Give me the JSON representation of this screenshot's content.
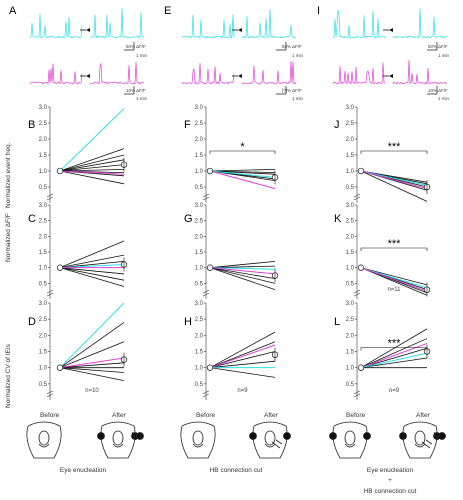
{
  "panel_labels": [
    "A",
    "B",
    "C",
    "D",
    "E",
    "F",
    "G",
    "H",
    "I",
    "J",
    "K",
    "L"
  ],
  "trace_scales": {
    "A_cyan": "50% ΔF/F",
    "A_magenta": "10% ΔF/F",
    "E_cyan": "50% ΔF/F",
    "E_magenta": "[?]% ΔF/F",
    "I_cyan": "50% ΔF/F",
    "I_magenta": "10% ΔF/F",
    "time": "1 min"
  },
  "y_labels": [
    "Normalized event freq.",
    "Normalized ΔF/F",
    "Normalized CV of IEIs"
  ],
  "x_labels": {
    "before": "Before",
    "after": "After"
  },
  "conditions": [
    "Eye enucleation",
    "HB connection cut",
    "Eye enucleation\n+\nHB connection cut"
  ],
  "cond_lines": {
    "c1": "Eye enucleation",
    "c2": "HB connection cut",
    "c3a": "Eye enucleation",
    "c3b": "+",
    "c3c": "HB connection cut"
  },
  "colors": {
    "cyan": "#2fe0e6",
    "magenta": "#e040d6",
    "black": "#111111"
  },
  "chart_data": [
    {
      "panel": "B",
      "type": "line",
      "ylabel": "Normalized event freq.",
      "ylim": [
        0,
        3.0
      ],
      "yticks": [
        0,
        0.5,
        1.0,
        1.5,
        2.0,
        2.5,
        3.0
      ],
      "x": [
        "Before",
        "After"
      ],
      "series": [
        {
          "color": "cyan",
          "values": [
            1.0,
            2.95
          ]
        },
        {
          "color": "black",
          "values": [
            1.0,
            1.7
          ]
        },
        {
          "color": "black",
          "values": [
            1.0,
            1.5
          ]
        },
        {
          "color": "black",
          "values": [
            1.0,
            1.35
          ]
        },
        {
          "color": "black",
          "values": [
            1.0,
            1.2
          ]
        },
        {
          "color": "black",
          "values": [
            1.0,
            1.05
          ]
        },
        {
          "color": "black",
          "values": [
            1.0,
            0.95
          ]
        },
        {
          "color": "magenta",
          "values": [
            1.0,
            0.9
          ]
        },
        {
          "color": "black",
          "values": [
            1.0,
            0.85
          ]
        },
        {
          "color": "black",
          "values": [
            1.0,
            0.6
          ]
        }
      ],
      "mean": [
        1.0,
        1.2
      ],
      "annotation": ""
    },
    {
      "panel": "F",
      "type": "line",
      "ylim": [
        0,
        3.0
      ],
      "x": [
        "Before",
        "After"
      ],
      "series": [
        {
          "color": "black",
          "values": [
            1.0,
            1.05
          ]
        },
        {
          "color": "black",
          "values": [
            1.0,
            0.95
          ]
        },
        {
          "color": "black",
          "values": [
            1.0,
            0.9
          ]
        },
        {
          "color": "cyan",
          "values": [
            1.0,
            0.8
          ]
        },
        {
          "color": "black",
          "values": [
            1.0,
            0.75
          ]
        },
        {
          "color": "black",
          "values": [
            1.0,
            0.7
          ]
        },
        {
          "color": "magenta",
          "values": [
            1.0,
            0.45
          ]
        }
      ],
      "mean": [
        1.0,
        0.8
      ],
      "annotation": "*"
    },
    {
      "panel": "J",
      "type": "line",
      "ylim": [
        0,
        3.0
      ],
      "x": [
        "Before",
        "After"
      ],
      "series": [
        {
          "color": "black",
          "values": [
            1.0,
            0.65
          ]
        },
        {
          "color": "black",
          "values": [
            1.0,
            0.6
          ]
        },
        {
          "color": "cyan",
          "values": [
            1.0,
            0.55
          ]
        },
        {
          "color": "black",
          "values": [
            1.0,
            0.5
          ]
        },
        {
          "color": "magenta",
          "values": [
            1.0,
            0.45
          ]
        },
        {
          "color": "black",
          "values": [
            1.0,
            0.4
          ]
        },
        {
          "color": "black",
          "values": [
            1.0,
            0.05
          ]
        }
      ],
      "mean": [
        1.0,
        0.5
      ],
      "annotation": "***"
    },
    {
      "panel": "C",
      "type": "line",
      "ylabel": "Normalized ΔF/F",
      "ylim": [
        0,
        3.0
      ],
      "x": [
        "Before",
        "After"
      ],
      "series": [
        {
          "color": "black",
          "values": [
            1.0,
            1.85
          ]
        },
        {
          "color": "black",
          "values": [
            1.0,
            1.4
          ]
        },
        {
          "color": "black",
          "values": [
            1.0,
            1.2
          ]
        },
        {
          "color": "cyan",
          "values": [
            1.0,
            1.1
          ]
        },
        {
          "color": "magenta",
          "values": [
            1.0,
            1.0
          ]
        },
        {
          "color": "black",
          "values": [
            1.0,
            0.8
          ]
        },
        {
          "color": "black",
          "values": [
            1.0,
            0.6
          ]
        },
        {
          "color": "black",
          "values": [
            1.0,
            0.4
          ]
        }
      ],
      "mean": [
        1.0,
        1.1
      ],
      "annotation": ""
    },
    {
      "panel": "G",
      "type": "line",
      "ylim": [
        0,
        3.0
      ],
      "x": [
        "Before",
        "After"
      ],
      "series": [
        {
          "color": "black",
          "values": [
            1.0,
            1.2
          ]
        },
        {
          "color": "black",
          "values": [
            1.0,
            1.05
          ]
        },
        {
          "color": "cyan",
          "values": [
            1.0,
            0.95
          ]
        },
        {
          "color": "magenta",
          "values": [
            1.0,
            0.8
          ]
        },
        {
          "color": "black",
          "values": [
            1.0,
            0.65
          ]
        },
        {
          "color": "black",
          "values": [
            1.0,
            0.5
          ]
        },
        {
          "color": "black",
          "values": [
            1.0,
            0.3
          ]
        }
      ],
      "mean": [
        1.0,
        0.75
      ],
      "annotation": ""
    },
    {
      "panel": "K",
      "type": "line",
      "ylim": [
        0,
        3.0
      ],
      "x": [
        "Before",
        "After"
      ],
      "series": [
        {
          "color": "black",
          "values": [
            1.0,
            0.45
          ]
        },
        {
          "color": "cyan",
          "values": [
            1.0,
            0.35
          ]
        },
        {
          "color": "black",
          "values": [
            1.0,
            0.3
          ]
        },
        {
          "color": "magenta",
          "values": [
            1.0,
            0.25
          ]
        },
        {
          "color": "black",
          "values": [
            1.0,
            0.2
          ]
        },
        {
          "color": "black",
          "values": [
            1.0,
            0.12
          ]
        }
      ],
      "mean": [
        1.0,
        0.3
      ],
      "annotation": "***",
      "n": "n=11"
    },
    {
      "panel": "D",
      "type": "line",
      "ylabel": "Normalized CV of IEIs",
      "ylim": [
        0,
        3.0
      ],
      "x": [
        "Before",
        "After"
      ],
      "series": [
        {
          "color": "cyan",
          "values": [
            1.0,
            3.1
          ]
        },
        {
          "color": "black",
          "values": [
            1.0,
            2.4
          ]
        },
        {
          "color": "black",
          "values": [
            1.0,
            1.8
          ]
        },
        {
          "color": "magenta",
          "values": [
            1.0,
            1.3
          ]
        },
        {
          "color": "black",
          "values": [
            1.0,
            1.15
          ]
        },
        {
          "color": "black",
          "values": [
            1.0,
            1.0
          ]
        },
        {
          "color": "black",
          "values": [
            1.0,
            0.85
          ]
        },
        {
          "color": "black",
          "values": [
            1.0,
            0.6
          ]
        }
      ],
      "mean": [
        1.0,
        1.25
      ],
      "annotation": "",
      "n": "n=10"
    },
    {
      "panel": "H",
      "type": "line",
      "ylim": [
        0,
        3.0
      ],
      "x": [
        "Before",
        "After"
      ],
      "series": [
        {
          "color": "black",
          "values": [
            1.0,
            2.1
          ]
        },
        {
          "color": "black",
          "values": [
            1.0,
            1.8
          ]
        },
        {
          "color": "magenta",
          "values": [
            1.0,
            1.7
          ]
        },
        {
          "color": "black",
          "values": [
            1.0,
            1.5
          ]
        },
        {
          "color": "black",
          "values": [
            1.0,
            1.2
          ]
        },
        {
          "color": "cyan",
          "values": [
            1.0,
            1.0
          ]
        },
        {
          "color": "black",
          "values": [
            1.0,
            0.7
          ]
        }
      ],
      "mean": [
        1.0,
        1.4
      ],
      "annotation": "",
      "n": "n=9"
    },
    {
      "panel": "L",
      "type": "line",
      "ylim": [
        0,
        3.0
      ],
      "x": [
        "Before",
        "After"
      ],
      "series": [
        {
          "color": "black",
          "values": [
            1.0,
            2.2
          ]
        },
        {
          "color": "black",
          "values": [
            1.0,
            1.9
          ]
        },
        {
          "color": "magenta",
          "values": [
            1.0,
            1.75
          ]
        },
        {
          "color": "black",
          "values": [
            1.0,
            1.6
          ]
        },
        {
          "color": "cyan",
          "values": [
            1.0,
            1.45
          ]
        },
        {
          "color": "black",
          "values": [
            1.0,
            1.3
          ]
        },
        {
          "color": "black",
          "values": [
            1.0,
            1.0
          ]
        }
      ],
      "mean": [
        1.0,
        1.5
      ],
      "annotation": "***",
      "n": "n=9"
    }
  ]
}
